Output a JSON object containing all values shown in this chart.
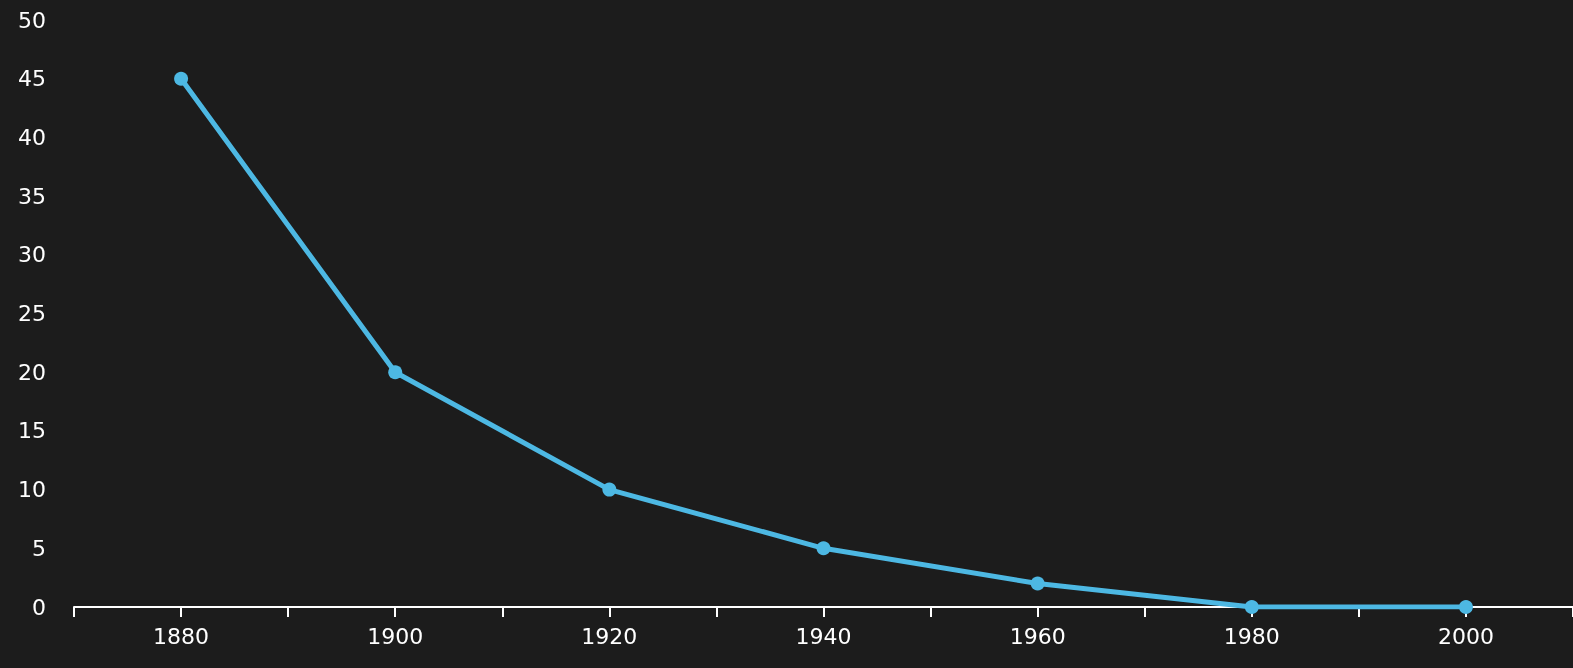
{
  "chart_data": {
    "type": "line",
    "x": [
      1880,
      1900,
      1920,
      1940,
      1960,
      1980,
      2000
    ],
    "series": [
      {
        "color": "#4db8e3",
        "values": [
          45,
          20,
          10,
          5,
          2,
          0,
          0
        ]
      }
    ],
    "xlim": [
      1870,
      2010
    ],
    "xticks": [
      {
        "value": 1870,
        "label": null
      },
      1880,
      {
        "value": 1890,
        "label": null
      },
      1900,
      {
        "value": 1910,
        "label": null
      },
      1920,
      {
        "value": 1930,
        "label": null
      },
      1940,
      {
        "value": 1950,
        "label": null
      },
      1960,
      {
        "value": 1970,
        "label": null
      },
      1980,
      {
        "value": 1990,
        "label": null
      },
      2000,
      {
        "value": 2010,
        "label": null
      }
    ],
    "ylim": [
      0,
      50
    ],
    "yticks": [
      0,
      5,
      10,
      15,
      20,
      25,
      30,
      35,
      40,
      45,
      50
    ],
    "grid": false,
    "marker": "circle",
    "line_style": "solid"
  }
}
